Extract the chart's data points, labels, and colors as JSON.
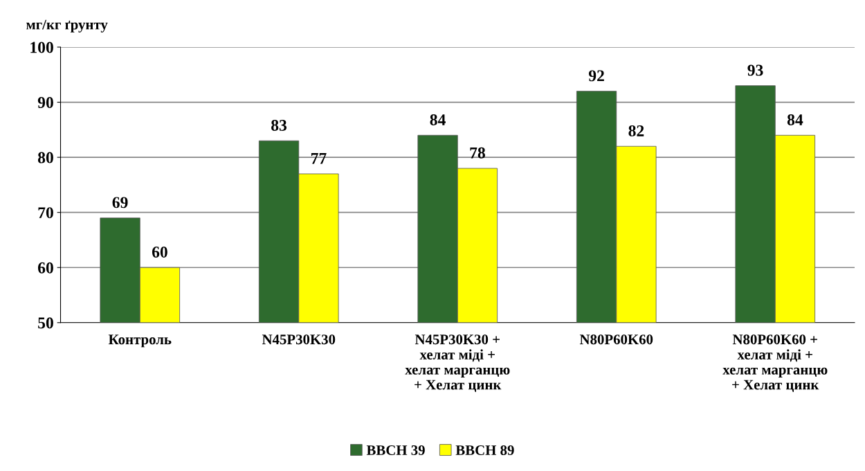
{
  "chart_data": {
    "type": "bar",
    "ylabel": "мг/кг ґрунту",
    "categories": [
      "Контроль",
      "N45P30K30",
      "N45P30K30 +\nхелат міді +\nхелат марганцю\n+ Хелат цинк",
      "N80P60K60",
      "N80P60K60 +\nхелат міді +\nхелат марганцю\n+ Хелат цинк"
    ],
    "series": [
      {
        "name": "BBCH 39",
        "color": "#2e6b2e",
        "values": [
          69,
          83,
          84,
          92,
          93
        ]
      },
      {
        "name": "BBCH 89",
        "color": "#ffff00",
        "values": [
          60,
          77,
          78,
          82,
          84
        ]
      }
    ],
    "ylim": [
      50,
      100
    ],
    "yticks": [
      50,
      60,
      70,
      80,
      90,
      100
    ],
    "grid": "y",
    "legend": "bottom",
    "data_labels": true
  }
}
